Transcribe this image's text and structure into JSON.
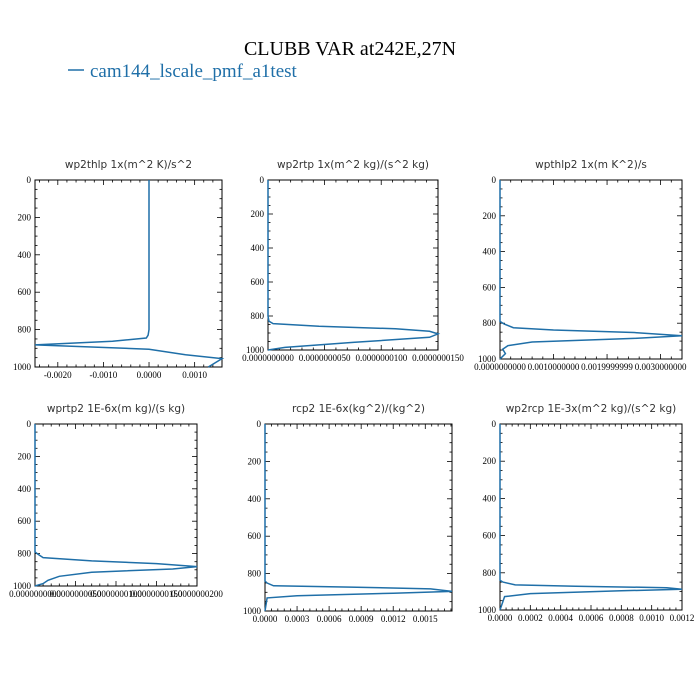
{
  "figure": {
    "title": "CLUBB VAR at242E,27N",
    "legend": "cam144_lscale_pmf_a1test",
    "line_color": "#1f6fa8"
  },
  "chart_data": [
    {
      "type": "line",
      "title": "wp2thlp  1x(m^2 K)/s^2",
      "xlim": [
        -0.0025,
        0.0016
      ],
      "ylim": [
        1000,
        0
      ],
      "xticks": [
        -0.002,
        -0.001,
        0.0,
        0.001
      ],
      "xtick_labels": [
        "-0.0020",
        "-0.0010",
        "0.0000",
        "0.0010"
      ],
      "yticks": [
        0,
        200,
        400,
        600,
        800,
        1000
      ],
      "ytick_labels": [
        "0",
        "200",
        "400",
        "600",
        "800",
        "1000"
      ],
      "series": [
        {
          "x": [
            0.0,
            0.0,
            0.0,
            -2e-05,
            -6e-05,
            -0.0008,
            -0.0025,
            0.0,
            0.0008,
            0.0016,
            0.0013
          ],
          "y": [
            0,
            400,
            800,
            830,
            845,
            862,
            882,
            905,
            935,
            955,
            1000
          ]
        }
      ]
    },
    {
      "type": "line",
      "title": "wp2rtp  1x(m^2 kg)/(s^2 kg)",
      "xlim": [
        0,
        1
      ],
      "ylim": [
        1000,
        0
      ],
      "xticks": [
        0,
        0.333,
        0.667,
        1
      ],
      "xtick_labels": [
        "0.0000000000",
        "0.0000000050",
        "0.0000000100",
        "0.0000000150"
      ],
      "yticks": [
        0,
        200,
        400,
        600,
        800,
        1000
      ],
      "ytick_labels": [
        "0",
        "200",
        "400",
        "600",
        "800",
        "1000"
      ],
      "series": [
        {
          "x": [
            0.0,
            0.0,
            0.005,
            0.03,
            0.3,
            0.75,
            0.95,
            1.0,
            0.95,
            0.5,
            0.1,
            0.0
          ],
          "y": [
            0,
            800,
            830,
            845,
            860,
            875,
            890,
            905,
            925,
            955,
            985,
            1000
          ]
        }
      ]
    },
    {
      "type": "line",
      "title": "wpthlp2  1x(m K^2)/s",
      "xlim": [
        0,
        0.0034
      ],
      "ylim": [
        1000,
        0
      ],
      "xticks": [
        0,
        0.001,
        0.002,
        0.003
      ],
      "xtick_labels": [
        "0.0000000000",
        "0.0010000000",
        "0.0019999999",
        "0.0030000000"
      ],
      "yticks": [
        0,
        200,
        400,
        600,
        800,
        1000
      ],
      "ytick_labels": [
        "0",
        "200",
        "400",
        "600",
        "800",
        "1000"
      ],
      "series": [
        {
          "x": [
            0.0,
            0.0,
            8e-05,
            0.00025,
            0.001,
            0.0025,
            0.0034,
            0.0025,
            0.0006,
            0.00015,
            5e-05,
            0.0001,
            0.0
          ],
          "y": [
            0,
            790,
            805,
            825,
            838,
            852,
            870,
            885,
            905,
            925,
            945,
            970,
            1000
          ]
        }
      ]
    },
    {
      "type": "line",
      "title": "wprtp2  1E-6x(m kg)/(s kg)",
      "xlim": [
        0,
        1
      ],
      "ylim": [
        1000,
        0
      ],
      "xticks": [
        0,
        0.25,
        0.5,
        0.75,
        1
      ],
      "xtick_labels": [
        "0.0000000000",
        "0.0000000050",
        "0.0000000100",
        "0.0000000150",
        "0.0000000200"
      ],
      "yticks": [
        0,
        200,
        400,
        600,
        800,
        1000
      ],
      "ytick_labels": [
        "0",
        "200",
        "400",
        "600",
        "800",
        "1000"
      ],
      "series": [
        {
          "x": [
            0.0,
            0.0,
            0.02,
            0.05,
            0.35,
            0.75,
            1.0,
            0.85,
            0.35,
            0.15,
            0.08,
            0.05,
            0.0
          ],
          "y": [
            0,
            790,
            805,
            825,
            845,
            862,
            880,
            895,
            915,
            940,
            965,
            985,
            1000
          ]
        }
      ]
    },
    {
      "type": "line",
      "title": "rcp2  1E-6x(kg^2)/(kg^2)",
      "xlim": [
        0,
        0.00175
      ],
      "ylim": [
        1000,
        0
      ],
      "xticks": [
        0.0,
        0.0003,
        0.0006,
        0.0009,
        0.0012,
        0.0015
      ],
      "xtick_labels": [
        "0.0000",
        "0.0003",
        "0.0006",
        "0.0009",
        "0.0012",
        "0.0015"
      ],
      "yticks": [
        0,
        200,
        400,
        600,
        800,
        1000
      ],
      "ytick_labels": [
        "0",
        "200",
        "400",
        "600",
        "800",
        "1000"
      ],
      "series": [
        {
          "x": [
            0.0,
            0.0,
            2e-05,
            8e-05,
            0.0008,
            0.00155,
            0.00175,
            0.0012,
            0.0003,
            2e-05,
            0.0
          ],
          "y": [
            0,
            840,
            850,
            865,
            872,
            882,
            895,
            905,
            918,
            930,
            1000
          ]
        }
      ]
    },
    {
      "type": "line",
      "title": "wp2rcp  1E-3x(m^2 kg)/(s^2 kg)",
      "xlim": [
        0,
        0.0012
      ],
      "ylim": [
        1000,
        0
      ],
      "xticks": [
        0.0,
        0.0002,
        0.0004,
        0.0006,
        0.0008,
        0.001,
        0.0012
      ],
      "xtick_labels": [
        "0.0000",
        "0.0002",
        "0.0004",
        "0.0006",
        "0.0008",
        "0.0010",
        "0.0012"
      ],
      "yticks": [
        0,
        200,
        400,
        600,
        800,
        1000
      ],
      "ytick_labels": [
        "0",
        "200",
        "400",
        "600",
        "800",
        "1000"
      ],
      "series": [
        {
          "x": [
            0.0,
            0.0,
            2e-05,
            0.0001,
            0.0005,
            0.0011,
            0.0012,
            0.0008,
            0.0002,
            3e-05,
            0.0
          ],
          "y": [
            0,
            840,
            850,
            865,
            872,
            880,
            888,
            897,
            912,
            928,
            1000
          ]
        }
      ]
    }
  ]
}
